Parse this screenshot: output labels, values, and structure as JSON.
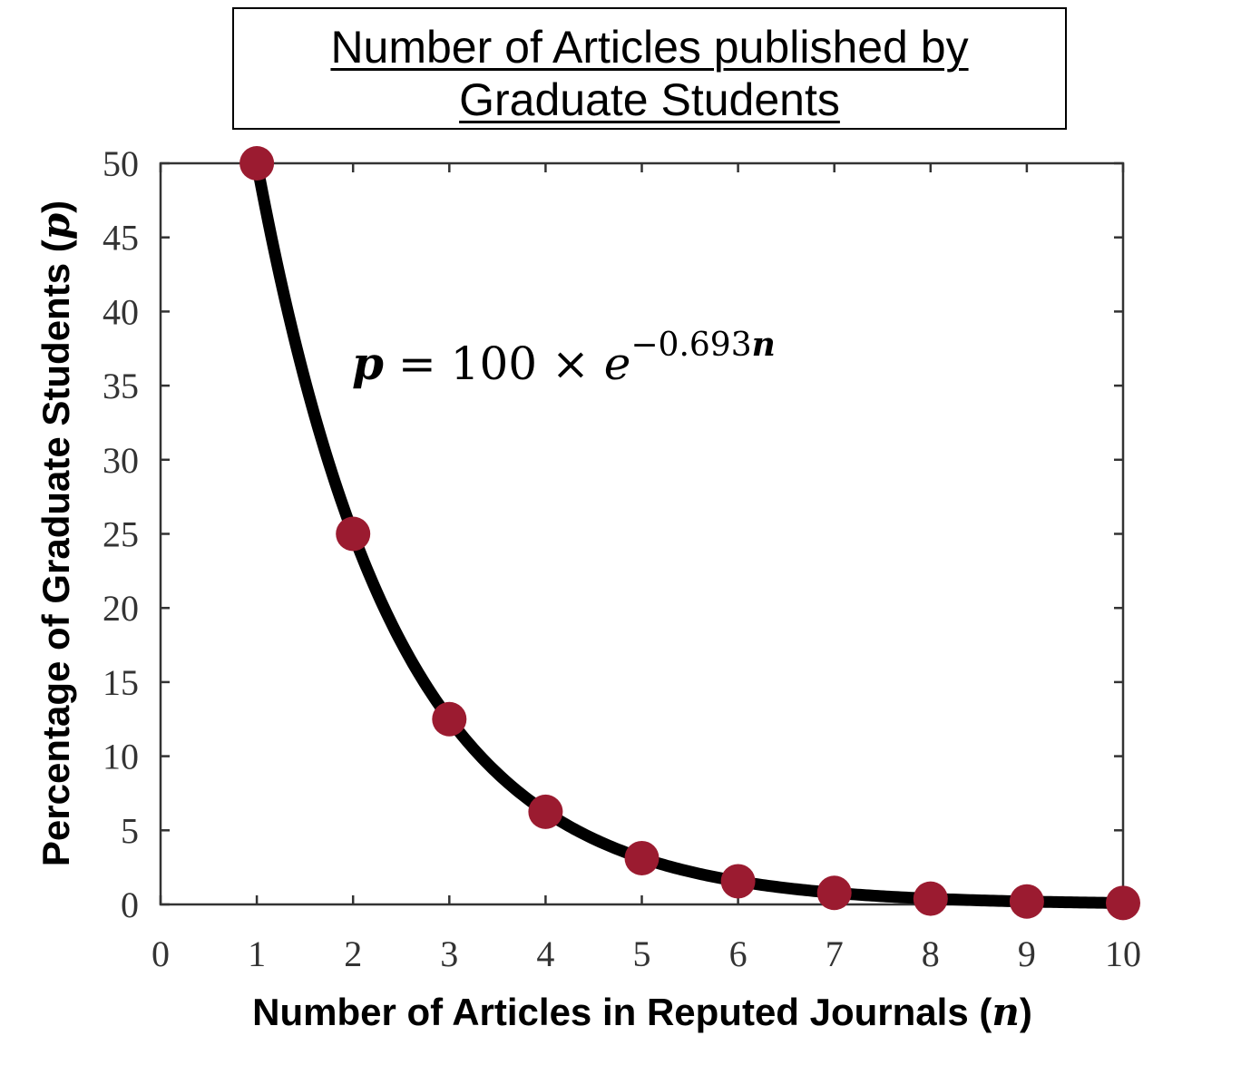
{
  "chart_data": {
    "type": "line",
    "title": [
      "Number of Articles published by",
      "Graduate Students"
    ],
    "xlabel": "Number of Articles in Reputed Journals",
    "xlabel_var": "n",
    "ylabel": "Percentage of Graduate Students",
    "ylabel_var": "p",
    "xlim": [
      0,
      10
    ],
    "ylim": [
      0,
      50
    ],
    "x_ticks": [
      "0",
      "1",
      "2",
      "3",
      "4",
      "5",
      "6",
      "7",
      "8",
      "9",
      "10"
    ],
    "y_ticks": [
      "0",
      "5",
      "10",
      "15",
      "20",
      "25",
      "30",
      "35",
      "40",
      "45",
      "50"
    ],
    "grid": false,
    "equation": {
      "lhs": "p",
      "mid": " = 100 × ",
      "base": "e",
      "exponent_coef": "−0.693",
      "exponent_var": "n"
    },
    "curve": {
      "formula_coefficient": 100,
      "formula_rate": -0.693,
      "x_range": [
        1,
        10
      ],
      "color": "#000000"
    },
    "series": [
      {
        "x": [
          1,
          2,
          3,
          4,
          5,
          6,
          7,
          8,
          9,
          10
        ],
        "values": [
          50,
          25,
          12.5,
          6.25,
          3.125,
          1.5625,
          0.78,
          0.39,
          0.2,
          0.1
        ],
        "color": "#9b1b30",
        "marker": "circle"
      }
    ]
  }
}
